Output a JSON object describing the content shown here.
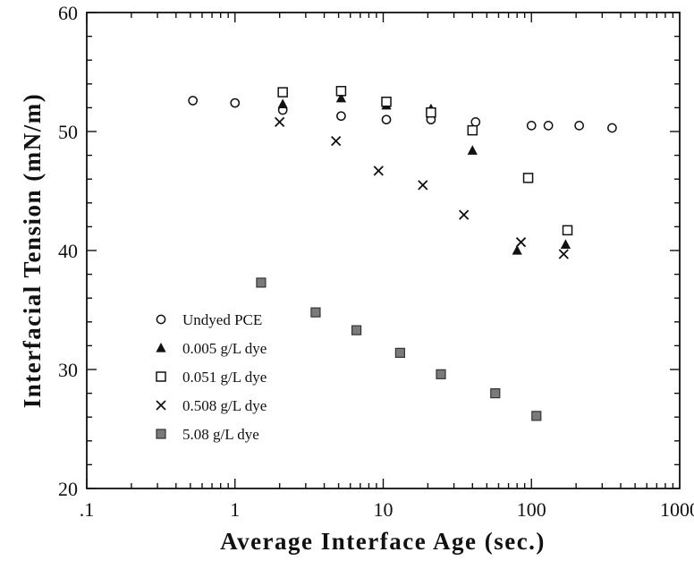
{
  "chart_data": {
    "type": "scatter",
    "xlabel": "Average Interface Age (sec.)",
    "ylabel": "Interfacial Tension (mN/m)",
    "x_scale": "log",
    "xlim": [
      0.1,
      1000
    ],
    "ylim": [
      20,
      60
    ],
    "x_ticks": [
      ".1",
      "1",
      "10",
      "100",
      "1000"
    ],
    "y_ticks": [
      "20",
      "30",
      "40",
      "50",
      "60"
    ],
    "grid": false,
    "legend_position": "bottom-left",
    "series": [
      {
        "name": "Undyed PCE",
        "marker": "open-circle",
        "color": "#111111",
        "points": [
          [
            0.52,
            52.6
          ],
          [
            1.0,
            52.4
          ],
          [
            2.1,
            51.8
          ],
          [
            5.2,
            51.3
          ],
          [
            10.5,
            51.0
          ],
          [
            21.0,
            51.0
          ],
          [
            42.0,
            50.8
          ],
          [
            100,
            50.5
          ],
          [
            130,
            50.5
          ],
          [
            210,
            50.5
          ],
          [
            350,
            50.3
          ]
        ]
      },
      {
        "name": "0.005 g/L dye",
        "marker": "filled-triangle",
        "color": "#111111",
        "points": [
          [
            2.1,
            52.3
          ],
          [
            5.2,
            52.8
          ],
          [
            10.5,
            52.2
          ],
          [
            21.0,
            51.9
          ],
          [
            40.0,
            48.4
          ],
          [
            80.0,
            40.0
          ],
          [
            170,
            40.5
          ]
        ]
      },
      {
        "name": "0.051 g/L dye",
        "marker": "open-square",
        "color": "#111111",
        "points": [
          [
            2.1,
            53.3
          ],
          [
            5.2,
            53.4
          ],
          [
            10.5,
            52.5
          ],
          [
            21.0,
            51.6
          ],
          [
            40.0,
            50.1
          ],
          [
            95.0,
            46.1
          ],
          [
            175,
            41.7
          ]
        ]
      },
      {
        "name": "0.508 g/L dye",
        "marker": "x-cross",
        "color": "#111111",
        "points": [
          [
            2.0,
            50.8
          ],
          [
            4.8,
            49.2
          ],
          [
            9.3,
            46.7
          ],
          [
            18.5,
            45.5
          ],
          [
            35.0,
            43.0
          ],
          [
            85.0,
            40.7
          ],
          [
            165,
            39.7
          ]
        ]
      },
      {
        "name": "5.08 g/L dye",
        "marker": "filled-square-gray",
        "color": "#7a7a7a",
        "points": [
          [
            1.5,
            37.3
          ],
          [
            3.5,
            34.8
          ],
          [
            6.6,
            33.3
          ],
          [
            13.0,
            31.4
          ],
          [
            24.5,
            29.6
          ],
          [
            57.0,
            28.0
          ],
          [
            108,
            26.1
          ]
        ]
      }
    ]
  }
}
